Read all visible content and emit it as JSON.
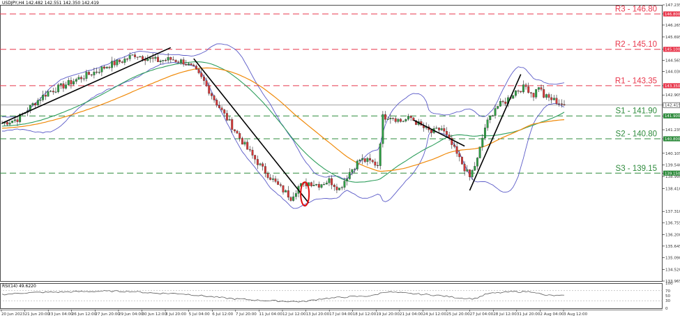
{
  "header": {
    "symbol": "USDJPY,H4",
    "ohlc": "142.482 142.551 142.350 142.419"
  },
  "rsi": {
    "label": "RSI(14) 49.6220",
    "ticks": [
      "100",
      "70",
      "50",
      "30",
      "0"
    ]
  },
  "colors": {
    "resistance": "#e8374c",
    "support": "#2e8b3c",
    "bull": "#2e9e44",
    "bear": "#d43838",
    "bands": "#5b5bc8",
    "ma_fast": "#2e9e5c",
    "ma_slow": "#f08a0a",
    "price_line": "#6e6e6e"
  },
  "chart_data": {
    "type": "candlestick",
    "symbol": "USDJPY",
    "timeframe": "H4",
    "ylim": [
      133.965,
      147.235
    ],
    "y_ticks": [
      "147.235",
      "146.800",
      "146.265",
      "145.695",
      "145.100",
      "144.565",
      "144.030",
      "143.350",
      "142.905",
      "142.419",
      "141.900",
      "141.235",
      "140.800",
      "140.105",
      "139.540",
      "139.150",
      "138.990",
      "138.410",
      "137.310",
      "136.755",
      "136.200",
      "135.645",
      "135.090",
      "134.520",
      "133.965"
    ],
    "x_ticks": [
      "20 Jun 2023",
      "21 Jun 20:00",
      "23 Jun 04:00",
      "26 Jun 12:00",
      "27 Jun 20:00",
      "29 Jun 04:00",
      "30 Jun 12:00",
      "3 Jul 20:00",
      "5 Jul 04:00",
      "6 Jul 12:00",
      "7 Jul 20:00",
      "11 Jul 04:00",
      "12 Jul 12:00",
      "13 Jul 20:00",
      "17 Jul 04:00",
      "18 Jul 12:00",
      "19 Jul 20:00",
      "21 Jul 04:00",
      "24 Jul 12:00",
      "25 Jul 20:00",
      "27 Jul 04:00",
      "28 Jul 12:00",
      "31 Jul 20:00",
      "2 Aug 04:00",
      "3 Aug 12:00"
    ],
    "levels": [
      {
        "name": "R3",
        "label": "R3 - 146.80",
        "tag": "146.800",
        "value": 146.8,
        "kind": "resistance"
      },
      {
        "name": "R2",
        "label": "R2 - 145.10",
        "tag": "145.100",
        "value": 145.1,
        "kind": "resistance"
      },
      {
        "name": "R1",
        "label": "R1 - 143.35",
        "tag": "143.350",
        "value": 143.35,
        "kind": "resistance"
      },
      {
        "name": "S1",
        "label": "S1 - 141.90",
        "tag": "141.900",
        "value": 141.9,
        "kind": "support"
      },
      {
        "name": "S2",
        "label": "S2 - 140.80",
        "tag": "140.800",
        "value": 140.8,
        "kind": "support"
      },
      {
        "name": "S3",
        "label": "S3 - 139.15",
        "tag": "139.150",
        "value": 139.15,
        "kind": "support"
      }
    ],
    "last_price": 142.419,
    "anchors": [
      [
        0,
        141.55
      ],
      [
        6,
        141.75
      ],
      [
        12,
        142.45
      ],
      [
        18,
        143.05
      ],
      [
        24,
        143.35
      ],
      [
        30,
        143.7
      ],
      [
        36,
        144.0
      ],
      [
        42,
        144.35
      ],
      [
        47,
        144.55
      ],
      [
        52,
        144.85
      ],
      [
        56,
        144.7
      ],
      [
        61,
        144.55
      ],
      [
        66,
        144.62
      ],
      [
        71,
        144.5
      ],
      [
        75,
        144.15
      ],
      [
        79,
        143.55
      ],
      [
        84,
        142.5
      ],
      [
        90,
        141.4
      ],
      [
        96,
        140.3
      ],
      [
        102,
        139.35
      ],
      [
        108,
        138.55
      ],
      [
        113,
        137.98
      ],
      [
        116,
        138.5
      ],
      [
        120,
        138.7
      ],
      [
        124,
        138.6
      ],
      [
        128,
        138.8
      ],
      [
        132,
        138.4
      ],
      [
        136,
        139.2
      ],
      [
        140,
        139.8
      ],
      [
        144,
        139.7
      ],
      [
        147,
        139.55
      ],
      [
        149,
        141.85
      ],
      [
        152,
        141.9
      ],
      [
        156,
        141.65
      ],
      [
        160,
        141.8
      ],
      [
        164,
        141.4
      ],
      [
        168,
        141.1
      ],
      [
        172,
        141.3
      ],
      [
        176,
        140.5
      ],
      [
        180,
        139.6
      ],
      [
        183,
        138.95
      ],
      [
        186,
        139.8
      ],
      [
        189,
        141.35
      ],
      [
        193,
        142.3
      ],
      [
        197,
        142.6
      ],
      [
        201,
        143.1
      ],
      [
        205,
        143.3
      ],
      [
        208,
        142.9
      ],
      [
        210,
        143.35
      ],
      [
        212,
        142.85
      ],
      [
        216,
        142.65
      ],
      [
        220,
        142.42
      ]
    ],
    "trendlines": [
      [
        [
          0,
          141.55
        ],
        [
          66,
          145.18
        ]
      ],
      [
        [
          75,
          144.65
        ],
        [
          120,
          137.72
        ]
      ],
      [
        [
          161,
          141.7
        ],
        [
          181,
          140.45
        ]
      ],
      [
        [
          183,
          138.32
        ],
        [
          203,
          143.9
        ]
      ]
    ],
    "rsi_anchors": [
      [
        0,
        55
      ],
      [
        10,
        62
      ],
      [
        20,
        64
      ],
      [
        30,
        66
      ],
      [
        40,
        68
      ],
      [
        50,
        67
      ],
      [
        60,
        60
      ],
      [
        70,
        58
      ],
      [
        80,
        48
      ],
      [
        90,
        38
      ],
      [
        100,
        32
      ],
      [
        110,
        28
      ],
      [
        118,
        26
      ],
      [
        125,
        38
      ],
      [
        135,
        45
      ],
      [
        145,
        50
      ],
      [
        150,
        66
      ],
      [
        160,
        58
      ],
      [
        170,
        52
      ],
      [
        180,
        40
      ],
      [
        185,
        38
      ],
      [
        190,
        58
      ],
      [
        200,
        66
      ],
      [
        208,
        66
      ],
      [
        212,
        52
      ],
      [
        220,
        49.6
      ]
    ]
  }
}
